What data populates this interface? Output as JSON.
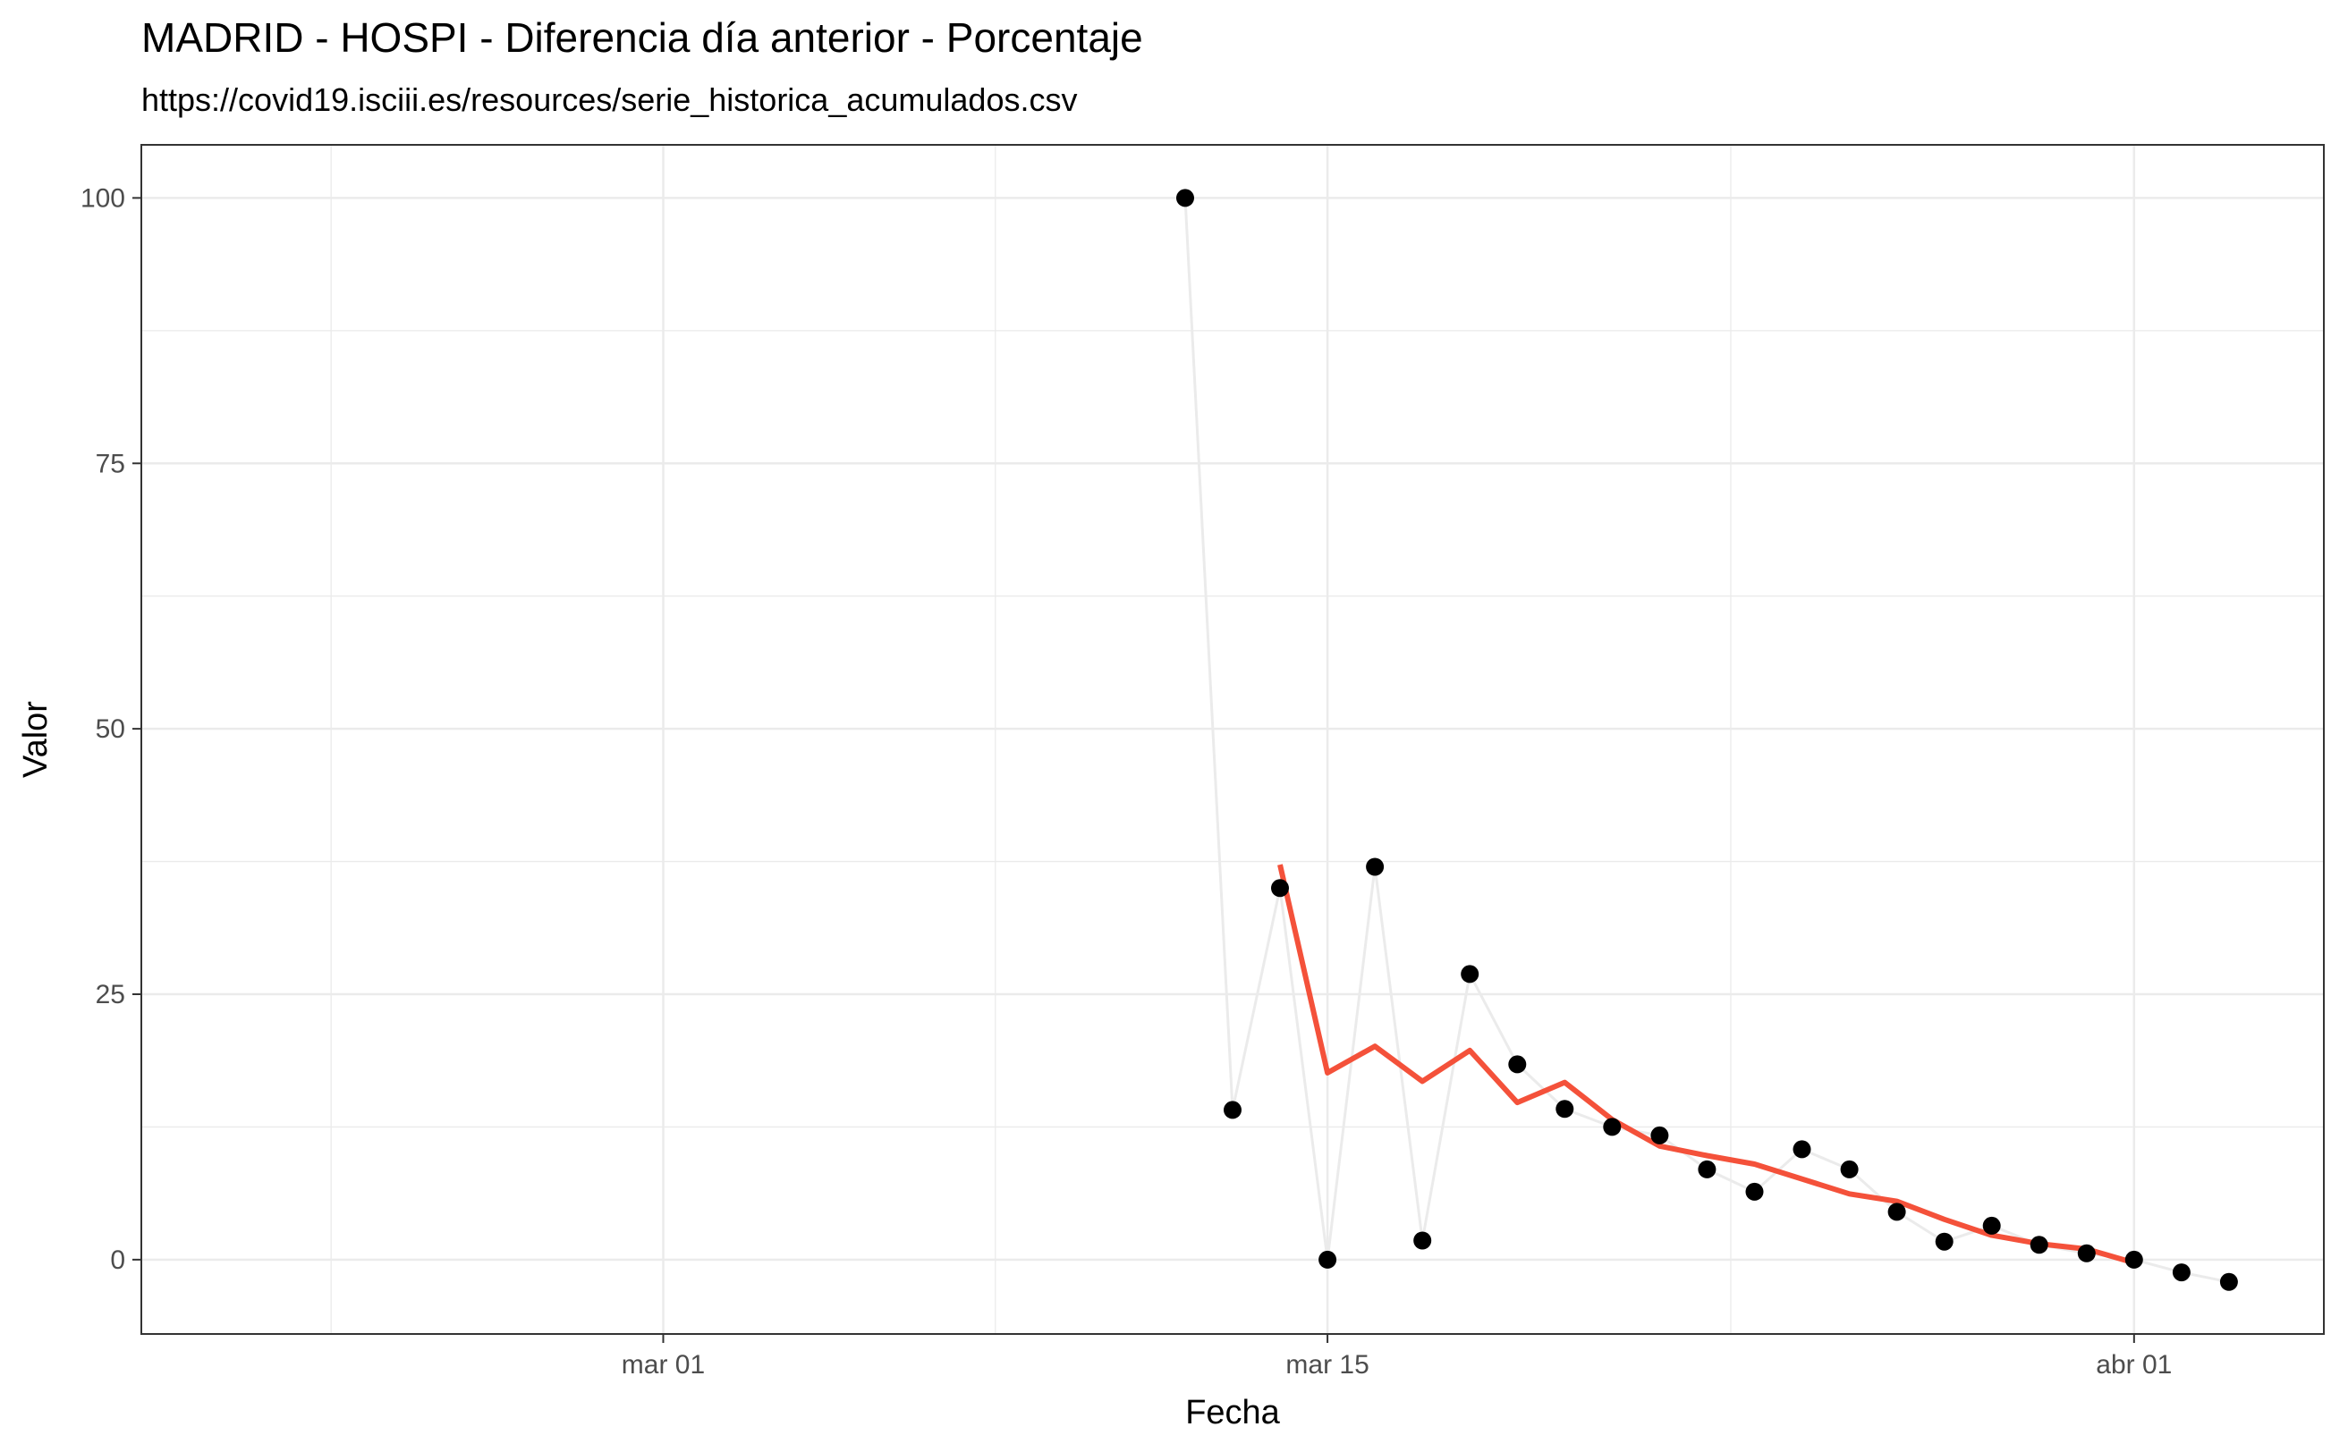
{
  "chart_data": {
    "type": "line",
    "title": "MADRID - HOSPI - Diferencia día anterior - Porcentaje",
    "subtitle": "https://covid19.isciii.es/resources/serie_historica_acumulados.csv",
    "xlabel": "Fecha",
    "ylabel": "Valor",
    "xlim": [
      "2020-02-19",
      "2020-04-05"
    ],
    "ylim": [
      -7,
      105
    ],
    "x_ticks": [
      {
        "date": "2020-03-01",
        "label": "mar 01"
      },
      {
        "date": "2020-03-15",
        "label": "mar 15"
      },
      {
        "date": "2020-04-01",
        "label": "abr 01"
      }
    ],
    "y_ticks": [
      0,
      25,
      50,
      75,
      100
    ],
    "grid": true,
    "series": [
      {
        "kind": "points-with-line",
        "color": "#000000",
        "line_color": "#ebebeb",
        "points": [
          {
            "x": "2020-03-12",
            "y": 100
          },
          {
            "x": "2020-03-13",
            "y": 14.1
          },
          {
            "x": "2020-03-14",
            "y": 35
          },
          {
            "x": "2020-03-15",
            "y": 0
          },
          {
            "x": "2020-03-16",
            "y": 37
          },
          {
            "x": "2020-03-17",
            "y": 1.8
          },
          {
            "x": "2020-03-18",
            "y": 26.9
          },
          {
            "x": "2020-03-19",
            "y": 18.4
          },
          {
            "x": "2020-03-20",
            "y": 14.2
          },
          {
            "x": "2020-03-21",
            "y": 12.5
          },
          {
            "x": "2020-03-22",
            "y": 11.7
          },
          {
            "x": "2020-03-23",
            "y": 8.5
          },
          {
            "x": "2020-03-24",
            "y": 6.4
          },
          {
            "x": "2020-03-25",
            "y": 10.4
          },
          {
            "x": "2020-03-26",
            "y": 8.5
          },
          {
            "x": "2020-03-27",
            "y": 4.5
          },
          {
            "x": "2020-03-28",
            "y": 1.7
          },
          {
            "x": "2020-03-29",
            "y": 3.2
          },
          {
            "x": "2020-03-30",
            "y": 1.4
          },
          {
            "x": "2020-03-31",
            "y": 0.6
          },
          {
            "x": "2020-04-01",
            "y": 0
          },
          {
            "x": "2020-04-02",
            "y": -1.2
          },
          {
            "x": "2020-04-03",
            "y": -2.1
          }
        ]
      },
      {
        "kind": "line",
        "color": "#f4513a",
        "points": [
          {
            "x": "2020-03-14",
            "y": 37.2
          },
          {
            "x": "2020-03-15",
            "y": 17.6
          },
          {
            "x": "2020-03-16",
            "y": 20.1
          },
          {
            "x": "2020-03-17",
            "y": 16.8
          },
          {
            "x": "2020-03-18",
            "y": 19.7
          },
          {
            "x": "2020-03-19",
            "y": 14.8
          },
          {
            "x": "2020-03-20",
            "y": 16.7
          },
          {
            "x": "2020-03-21",
            "y": 13.2
          },
          {
            "x": "2020-03-22",
            "y": 10.7
          },
          {
            "x": "2020-03-23",
            "y": 9.8
          },
          {
            "x": "2020-03-24",
            "y": 9.0
          },
          {
            "x": "2020-03-25",
            "y": 7.6
          },
          {
            "x": "2020-03-26",
            "y": 6.2
          },
          {
            "x": "2020-03-27",
            "y": 5.5
          },
          {
            "x": "2020-03-28",
            "y": 3.8
          },
          {
            "x": "2020-03-29",
            "y": 2.3
          },
          {
            "x": "2020-03-30",
            "y": 1.5
          },
          {
            "x": "2020-03-31",
            "y": 1.0
          },
          {
            "x": "2020-04-01",
            "y": -0.3
          }
        ]
      }
    ]
  }
}
